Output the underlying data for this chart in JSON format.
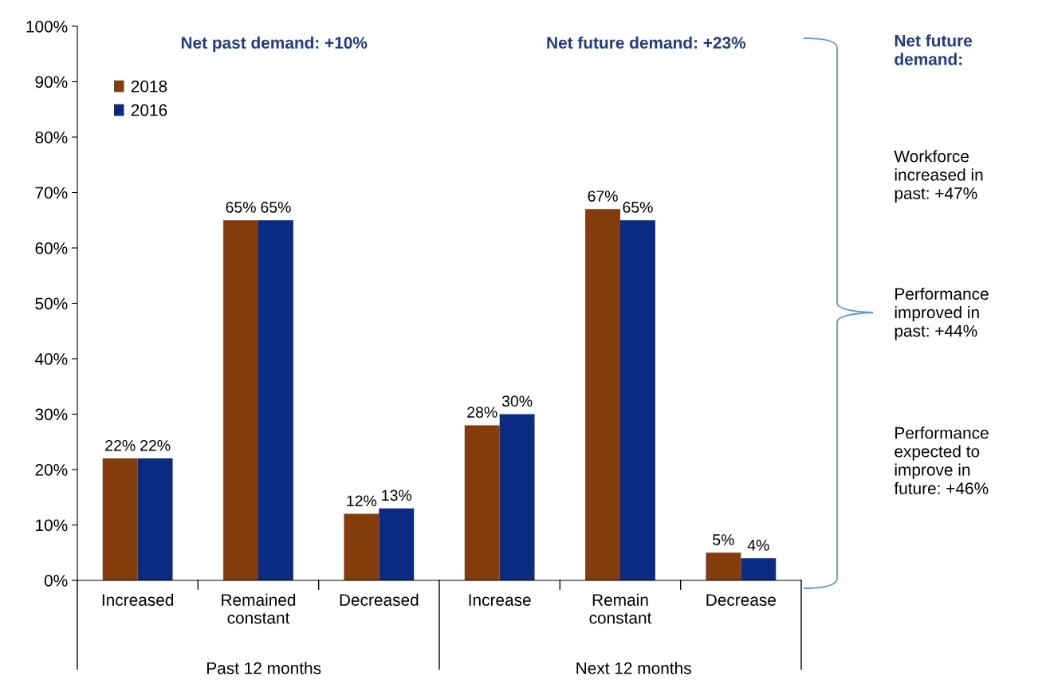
{
  "chart_data": {
    "type": "bar",
    "categories": [
      "Increased",
      "Remained\nconstant",
      "Decreased",
      "Increase",
      "Remain\nconstant",
      "Decrease"
    ],
    "series": [
      {
        "name": "2018",
        "color": "#843c0c",
        "values": [
          22,
          65,
          12,
          28,
          67,
          5
        ],
        "value_labels": [
          "22%",
          "65%",
          "12%",
          "28%",
          "67%",
          "5%"
        ]
      },
      {
        "name": "2016",
        "color": "#0b2a83",
        "values": [
          22,
          65,
          13,
          30,
          65,
          4
        ],
        "value_labels": [
          "22%",
          "65%",
          "13%",
          "30%",
          "65%",
          "4%"
        ]
      }
    ],
    "ylim": [
      0,
      100
    ],
    "yticks": [
      {
        "value": 0,
        "label": "0%"
      },
      {
        "value": 10,
        "label": "10%"
      },
      {
        "value": 20,
        "label": "20%"
      },
      {
        "value": 30,
        "label": "30%"
      },
      {
        "value": 40,
        "label": "40%"
      },
      {
        "value": 50,
        "label": "50%"
      },
      {
        "value": 60,
        "label": "60%"
      },
      {
        "value": 70,
        "label": "70%"
      },
      {
        "value": 80,
        "label": "80%"
      },
      {
        "value": 90,
        "label": "90%"
      },
      {
        "value": 100,
        "label": "100%"
      }
    ],
    "grid": false,
    "legend": "top left",
    "annotations": [
      "Net past demand: +10%",
      "Net future demand: +23%",
      "Net future demand:",
      "Workforce increased in past: +47%",
      "Performance improved in past: +44%",
      "Performance expected to improve in future: +46%",
      "Past 12 months",
      "Next 12 months"
    ]
  }
}
